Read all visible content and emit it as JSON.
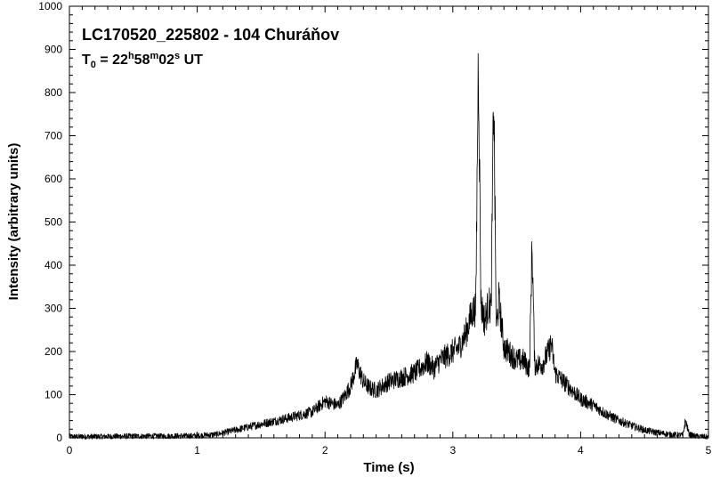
{
  "chart_data": {
    "type": "line",
    "title": "LC170520_225802 - 104 Churáňov",
    "subtitle": {
      "prefix": "T",
      "prefix_sub": "0",
      "equals": " = 22",
      "h": "h",
      "min": "58",
      "m": "m",
      "sec": "02",
      "s": "s",
      "suffix": " UT"
    },
    "xlabel": "Time (s)",
    "ylabel": "Intensity (arbitrary units)",
    "xlim": [
      0,
      5
    ],
    "ylim": [
      0,
      1000
    ],
    "xticks": [
      "0",
      "1",
      "2",
      "3",
      "4",
      "5"
    ],
    "yticks": [
      "0",
      "100",
      "200",
      "300",
      "400",
      "500",
      "600",
      "700",
      "800",
      "900",
      "1000"
    ],
    "grid": false,
    "series": [
      {
        "color": "#000000",
        "x": [
          0.0,
          0.25,
          0.5,
          0.75,
          1.0,
          1.15,
          1.3,
          1.5,
          1.7,
          1.9,
          2.0,
          2.05,
          2.1,
          2.15,
          2.2,
          2.25,
          2.3,
          2.35,
          2.4,
          2.5,
          2.6,
          2.7,
          2.8,
          2.85,
          2.9,
          2.95,
          3.0,
          3.05,
          3.1,
          3.15,
          3.18,
          3.2,
          3.22,
          3.25,
          3.28,
          3.3,
          3.32,
          3.34,
          3.36,
          3.4,
          3.5,
          3.55,
          3.6,
          3.62,
          3.64,
          3.7,
          3.75,
          3.77,
          3.8,
          3.9,
          4.0,
          4.1,
          4.2,
          4.3,
          4.4,
          4.5,
          4.6,
          4.7,
          4.8,
          4.82,
          4.85,
          4.9,
          5.0
        ],
        "y": [
          3,
          3,
          4,
          4,
          5,
          8,
          18,
          32,
          45,
          60,
          85,
          80,
          75,
          95,
          120,
          170,
          130,
          115,
          110,
          130,
          140,
          150,
          175,
          160,
          180,
          190,
          200,
          210,
          240,
          290,
          300,
          900,
          310,
          270,
          310,
          300,
          810,
          250,
          320,
          210,
          180,
          180,
          160,
          455,
          170,
          170,
          200,
          220,
          150,
          120,
          90,
          75,
          55,
          40,
          28,
          18,
          12,
          8,
          6,
          40,
          8,
          4,
          2
        ]
      }
    ]
  }
}
